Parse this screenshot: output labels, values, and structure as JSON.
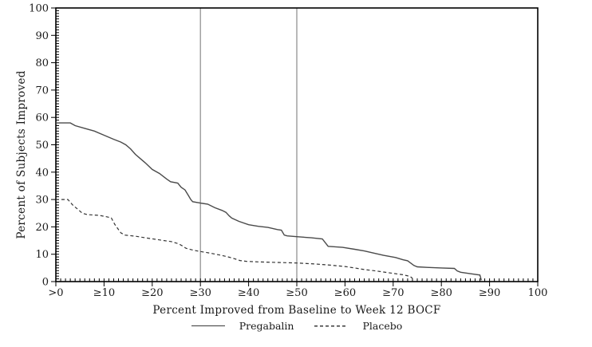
{
  "chart_data": {
    "type": "line",
    "title": "",
    "xlabel": "Percent Improved from Baseline to Week 12 BOCF",
    "ylabel": "Percent of Subjects Improved",
    "xlim": [
      0,
      100
    ],
    "ylim": [
      0,
      100
    ],
    "grid": false,
    "x_ticks": {
      "values": [
        0,
        10,
        20,
        30,
        40,
        50,
        60,
        70,
        80,
        90,
        100
      ],
      "labels": [
        ">0",
        "≥10",
        "≥20",
        "≥30",
        "≥40",
        "≥50",
        "≥60",
        "≥70",
        "≥80",
        "≥90",
        "100"
      ]
    },
    "y_ticks": {
      "values": [
        0,
        10,
        20,
        30,
        40,
        50,
        60,
        70,
        80,
        90,
        100
      ],
      "labels": [
        "0",
        "10",
        "20",
        "30",
        "40",
        "50",
        "60",
        "70",
        "80",
        "90",
        "100"
      ]
    },
    "minor_tick_step": 1,
    "reference_lines_x": [
      30,
      50
    ],
    "legend": {
      "position": "bottom",
      "entries": [
        {
          "label": "Pregabalin",
          "style": "solid"
        },
        {
          "label": "Placebo",
          "style": "dashed"
        }
      ]
    },
    "colors": {
      "axis": "#000000",
      "text": "#1a1a1a",
      "reference_line": "#8a8a8a",
      "pregabalin": "#4a4a4a",
      "placebo": "#333333",
      "background": "#ffffff"
    },
    "series": [
      {
        "name": "Pregabalin",
        "style": "solid",
        "points": [
          [
            0,
            58
          ],
          [
            3,
            58
          ],
          [
            4,
            57
          ],
          [
            6,
            56
          ],
          [
            8,
            55
          ],
          [
            10,
            53.5
          ],
          [
            12,
            52
          ],
          [
            13.5,
            51
          ],
          [
            14.5,
            50
          ],
          [
            15.5,
            48.5
          ],
          [
            16.5,
            46.5
          ],
          [
            17.5,
            45
          ],
          [
            18.5,
            43.5
          ],
          [
            20,
            41
          ],
          [
            21.5,
            39.5
          ],
          [
            23,
            37.5
          ],
          [
            23.8,
            36.5
          ],
          [
            25.3,
            36
          ],
          [
            26,
            34.5
          ],
          [
            26.8,
            33.5
          ],
          [
            27.5,
            31.5
          ],
          [
            28,
            30
          ],
          [
            28.4,
            29.2
          ],
          [
            30,
            28.7
          ],
          [
            31.5,
            28.3
          ],
          [
            33,
            27
          ],
          [
            34.5,
            26
          ],
          [
            35.3,
            25.3
          ],
          [
            36,
            24
          ],
          [
            36.5,
            23.2
          ],
          [
            38,
            22
          ],
          [
            40,
            20.8
          ],
          [
            42,
            20.2
          ],
          [
            44,
            19.8
          ],
          [
            46,
            19
          ],
          [
            46.8,
            18.8
          ],
          [
            47.4,
            17
          ],
          [
            48,
            16.7
          ],
          [
            50,
            16.4
          ],
          [
            53,
            16
          ],
          [
            55.3,
            15.6
          ],
          [
            55.8,
            14.5
          ],
          [
            56.5,
            12.9
          ],
          [
            58,
            12.7
          ],
          [
            59.5,
            12.5
          ],
          [
            62,
            11.8
          ],
          [
            64,
            11.2
          ],
          [
            66,
            10.4
          ],
          [
            68,
            9.6
          ],
          [
            70.5,
            8.8
          ],
          [
            72,
            8
          ],
          [
            73,
            7.6
          ],
          [
            74.3,
            5.9
          ],
          [
            75,
            5.4
          ],
          [
            77,
            5.2
          ],
          [
            80,
            5
          ],
          [
            82.7,
            4.8
          ],
          [
            83.3,
            3.9
          ],
          [
            84,
            3.4
          ],
          [
            86,
            2.9
          ],
          [
            88,
            2.4
          ],
          [
            88.3,
            0.5
          ]
        ]
      },
      {
        "name": "Placebo",
        "style": "dashed",
        "points": [
          [
            0,
            30
          ],
          [
            2.5,
            30
          ],
          [
            3.5,
            28
          ],
          [
            4.5,
            26.5
          ],
          [
            5.5,
            25
          ],
          [
            6.5,
            24.5
          ],
          [
            9,
            24.2
          ],
          [
            10.5,
            23.7
          ],
          [
            11.5,
            23.3
          ],
          [
            12.2,
            21
          ],
          [
            12.8,
            19.5
          ],
          [
            13.5,
            17.8
          ],
          [
            14.3,
            17
          ],
          [
            16.5,
            16.6
          ],
          [
            19,
            15.9
          ],
          [
            22,
            15.1
          ],
          [
            24,
            14.6
          ],
          [
            25.5,
            13.8
          ],
          [
            26.3,
            13
          ],
          [
            27,
            12.2
          ],
          [
            28.5,
            11.5
          ],
          [
            30,
            11
          ],
          [
            32,
            10.4
          ],
          [
            34,
            9.7
          ],
          [
            35.6,
            9.1
          ],
          [
            37,
            8.4
          ],
          [
            38.2,
            7.7
          ],
          [
            39.5,
            7.4
          ],
          [
            42,
            7.2
          ],
          [
            46,
            7
          ],
          [
            50,
            6.8
          ],
          [
            54,
            6.4
          ],
          [
            57,
            6
          ],
          [
            60,
            5.5
          ],
          [
            62,
            5
          ],
          [
            64,
            4.4
          ],
          [
            66,
            4
          ],
          [
            68,
            3.5
          ],
          [
            70,
            3
          ],
          [
            72,
            2.5
          ],
          [
            73.5,
            1.9
          ],
          [
            74,
            1.2
          ]
        ]
      }
    ]
  }
}
